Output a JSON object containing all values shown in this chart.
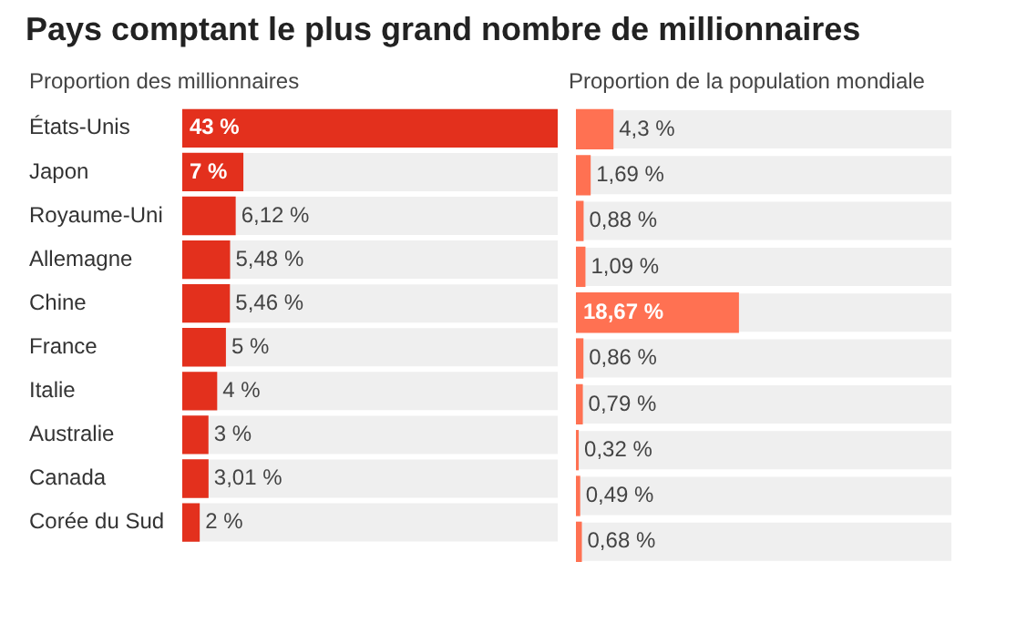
{
  "chart_data": [
    {
      "type": "bar",
      "orientation": "horizontal",
      "title": "Pays comptant le plus grand nombre de millionnaires",
      "subtitle": "Proportion des millionnaires",
      "categories": [
        "États-Unis",
        "Japon",
        "Royaume-Uni",
        "Allemagne",
        "Chine",
        "France",
        "Italie",
        "Australie",
        "Canada",
        "Corée du Sud"
      ],
      "values": [
        43,
        7,
        6.12,
        5.48,
        5.46,
        5,
        4,
        3,
        3.01,
        2
      ],
      "value_labels": [
        "43 %",
        "7 %",
        "6,12 %",
        "5,48 %",
        "5,46 %",
        "5 %",
        "4 %",
        "3 %",
        "3,01 %",
        "2 %"
      ],
      "color": "#e3301d",
      "xlim": [
        0,
        43
      ],
      "tick_labels": "y",
      "grid": false,
      "legend": false
    },
    {
      "type": "bar",
      "orientation": "horizontal",
      "title": "Proportion de la population mondiale",
      "categories": [
        null,
        null,
        null,
        null,
        null,
        null,
        null,
        null,
        null,
        null
      ],
      "values": [
        4.3,
        1.69,
        0.88,
        1.09,
        18.67,
        0.86,
        0.79,
        0.32,
        0.49,
        0.68
      ],
      "value_labels": [
        "4,3 %",
        "1,69 %",
        "0,88 %",
        "1,09 %",
        "18,67 %",
        "0,86 %",
        "0,79 %",
        "0,32 %",
        "0,49 %",
        "0,68 %"
      ],
      "color": "#ff7152",
      "xlim": [
        0,
        43
      ],
      "tick_labels": false,
      "grid": false,
      "legend": false
    }
  ]
}
